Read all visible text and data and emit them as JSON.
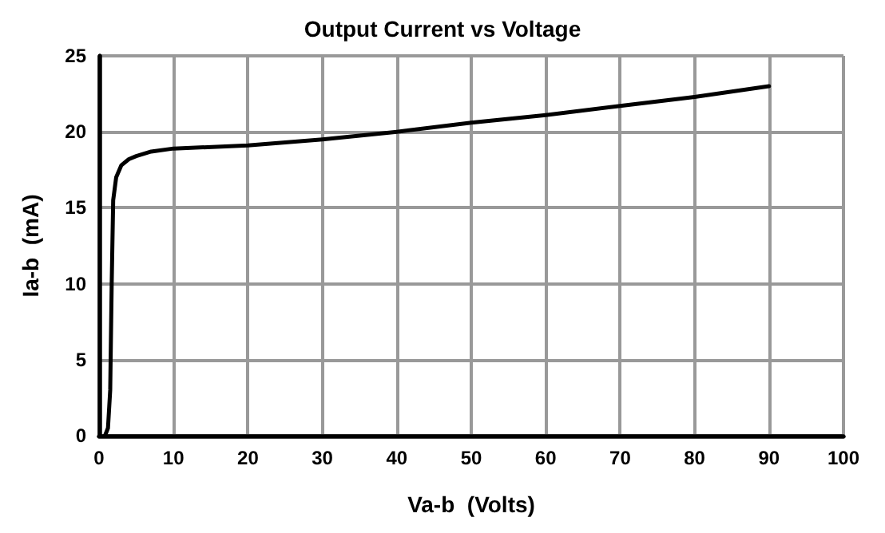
{
  "chart_data": {
    "type": "line",
    "title": "Output Current vs Voltage",
    "xlabel": "Va-b  (Volts)",
    "ylabel": "Ia-b  (mA)",
    "x": [
      0.8,
      1.2,
      1.5,
      1.7,
      1.9,
      2.3,
      3,
      4,
      5,
      7,
      10,
      20,
      30,
      40,
      50,
      60,
      70,
      80,
      90
    ],
    "series": [
      {
        "color": "#000000",
        "values": [
          0,
          0.5,
          3,
          10,
          15.5,
          17,
          17.8,
          18.2,
          18.4,
          18.7,
          18.9,
          19.1,
          19.5,
          20,
          20.6,
          21.1,
          21.7,
          22.3,
          23
        ]
      }
    ],
    "xlim": [
      0,
      100
    ],
    "xticks": [
      0,
      10,
      20,
      30,
      40,
      50,
      60,
      70,
      80,
      90,
      100
    ],
    "ylim": [
      0,
      25
    ],
    "yticks": [
      0,
      5,
      10,
      15,
      20,
      25
    ],
    "grid": true,
    "marker": "none",
    "line_style": "solid"
  }
}
